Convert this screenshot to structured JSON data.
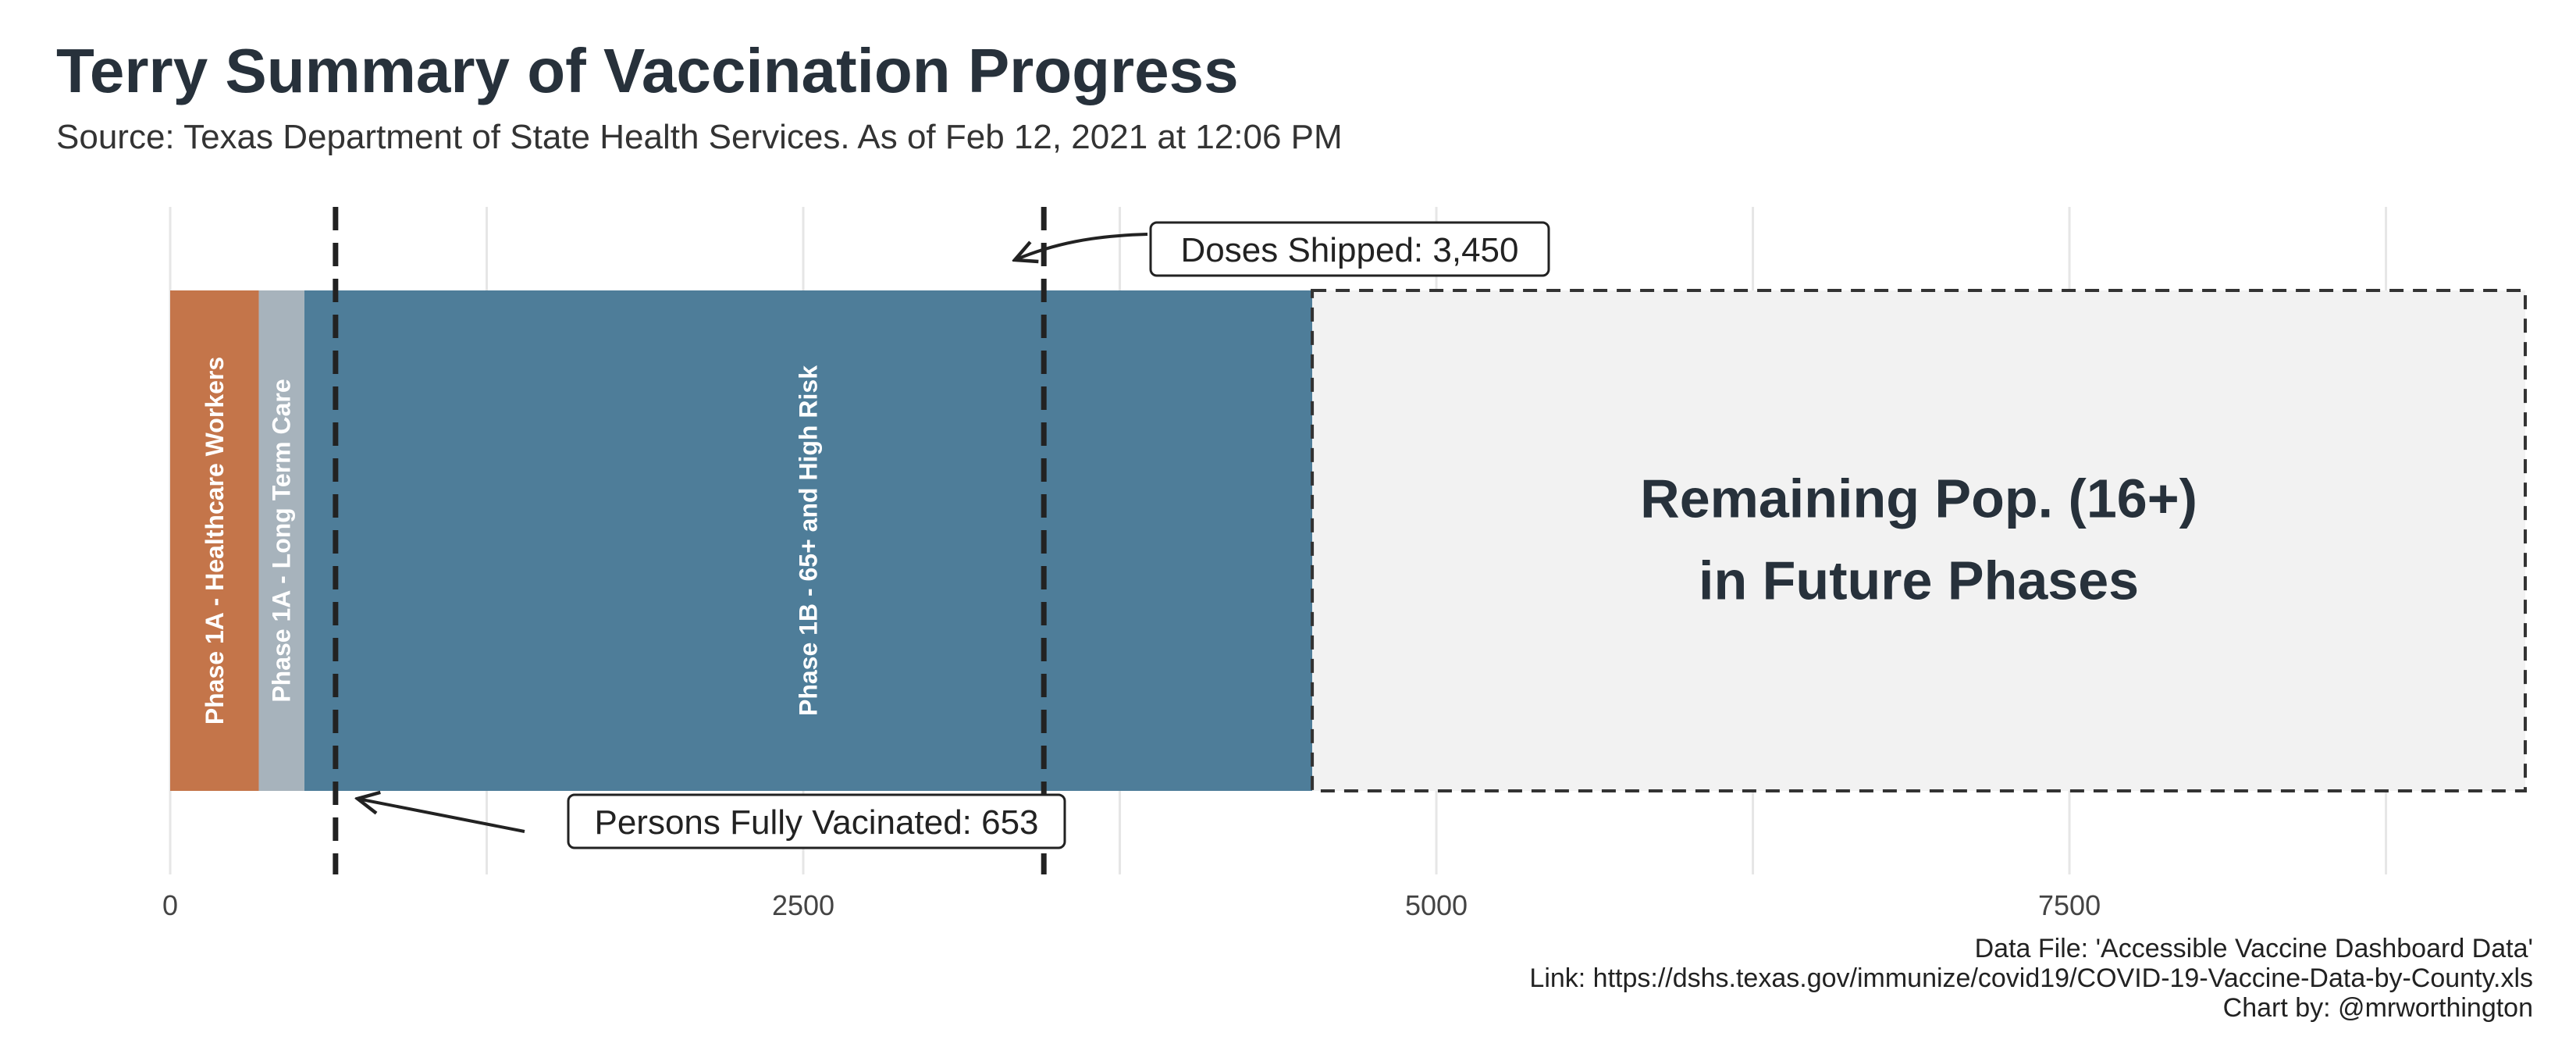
{
  "chart_data": {
    "type": "bar",
    "orientation": "horizontal-stacked",
    "title": "Terry Summary of Vaccination Progress",
    "subtitle": "Source: Texas Department of State Health Services. As of Feb 12, 2021 at 12:06 PM",
    "xlim": [
      0,
      9300
    ],
    "xticks": [
      0,
      2500,
      5000,
      7500
    ],
    "x_gridlines": [
      0,
      1250,
      2500,
      3750,
      5000,
      6250,
      7500,
      8750
    ],
    "grid": true,
    "segments": [
      {
        "label": "Phase 1A - Healthcare Workers",
        "value": 350,
        "color": "#c4754a"
      },
      {
        "label": "Phase 1A - Long Term Care",
        "value": 180,
        "color": "#a7b3bc"
      },
      {
        "label": "Phase 1B - 65+ and High Risk",
        "value": 3980,
        "color": "#4e7d99"
      },
      {
        "label": "Remaining Pop. (16+)\nin Future Phases",
        "value": 4790,
        "color": "#f2f2f2",
        "style": "dashed-outline"
      }
    ],
    "reference_lines": [
      {
        "name": "Persons Fully Vacinated",
        "value": 653,
        "label": "Persons Fully Vacinated: 653"
      },
      {
        "name": "Doses Shipped",
        "value": 3450,
        "label": "Doses Shipped: 3,450"
      }
    ],
    "caption": [
      "Data File: 'Accessible Vaccine Dashboard Data'",
      "Link: https://dshs.texas.gov/immunize/covid19/COVID-19-Vaccine-Data-by-County.xls",
      "Chart by: @mrworthington"
    ]
  }
}
